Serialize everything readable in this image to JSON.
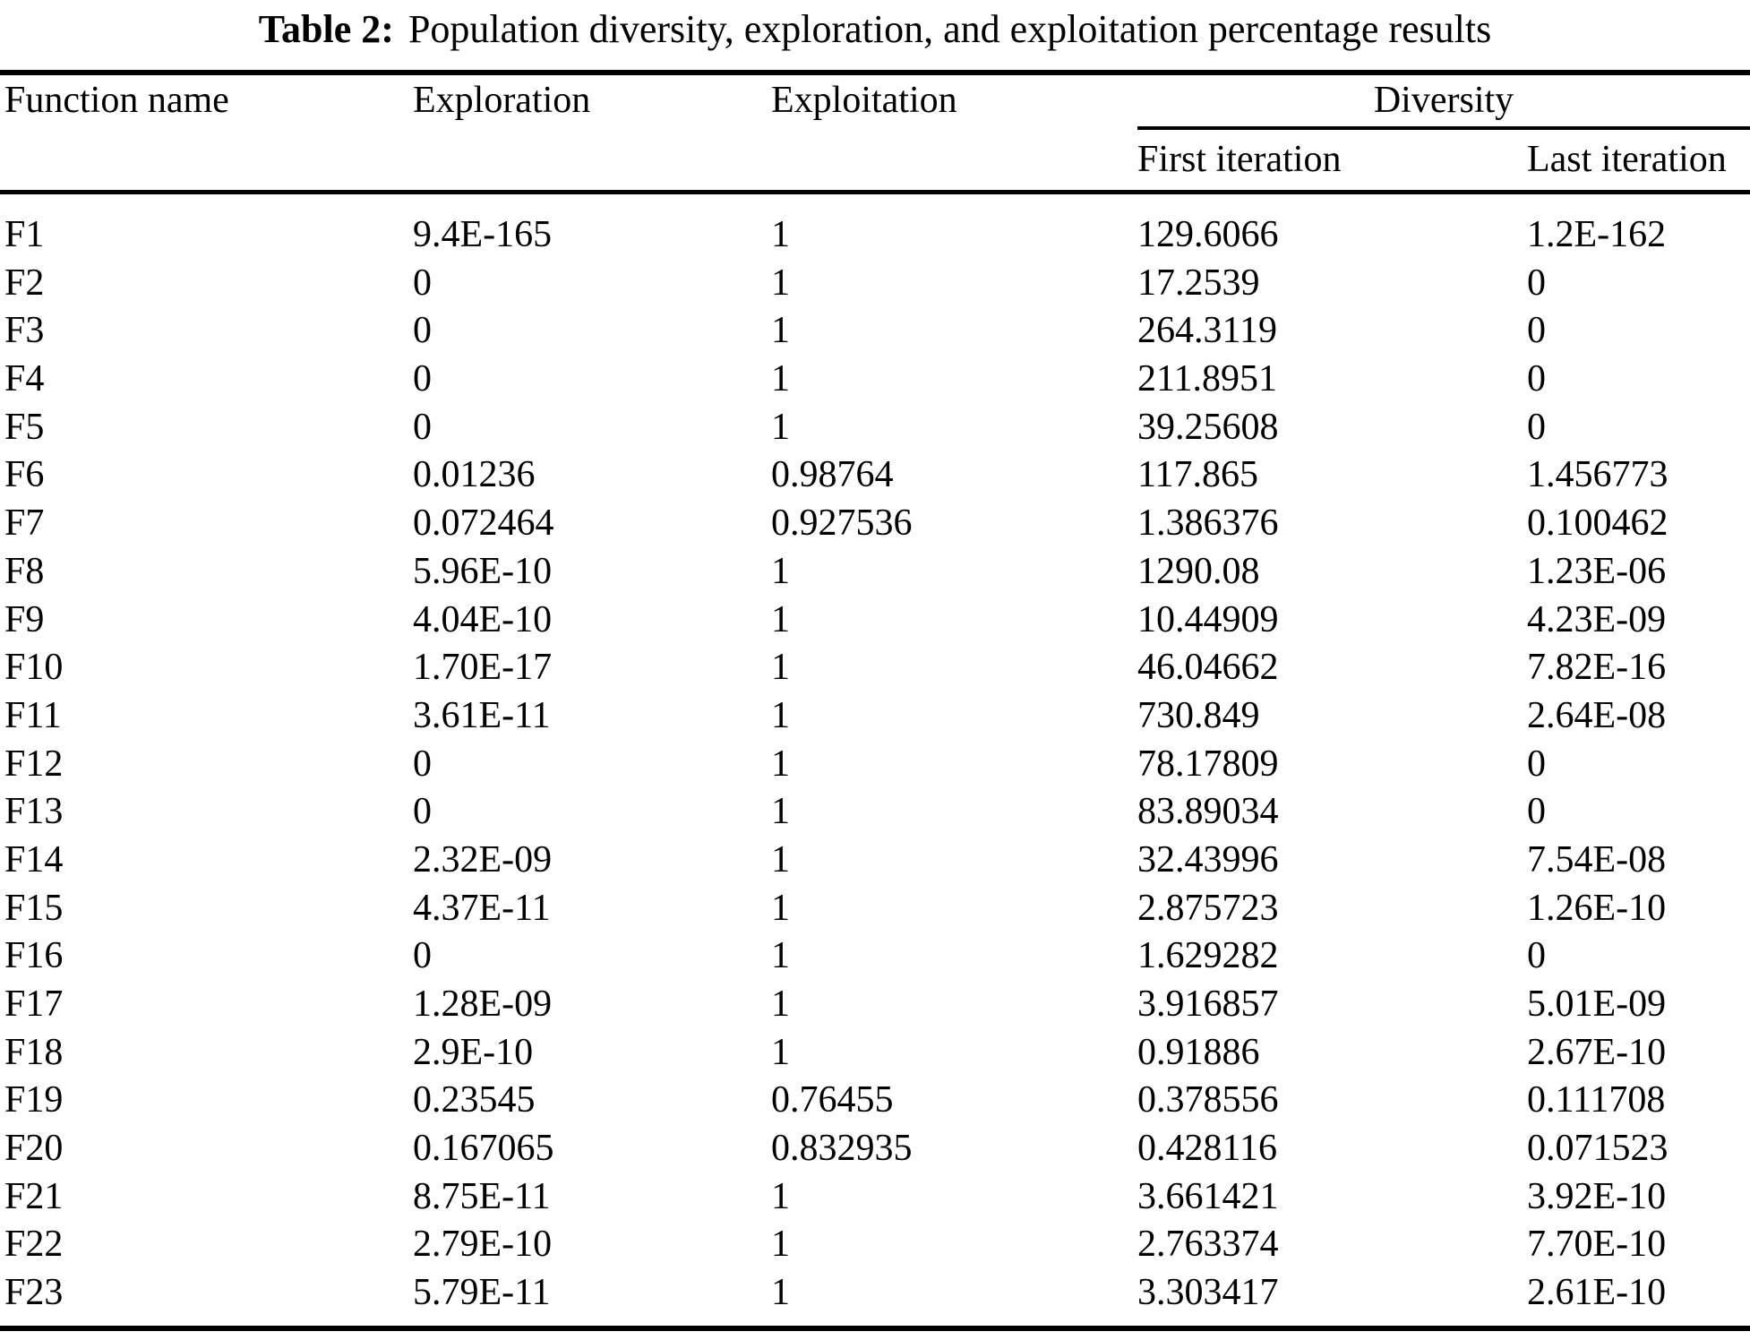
{
  "caption": {
    "label": "Table 2:",
    "text": "Population diversity, exploration, and exploitation percentage results"
  },
  "table": {
    "headers": {
      "function_name": "Function name",
      "exploration": "Exploration",
      "exploitation": "Exploitation",
      "diversity": "Diversity",
      "first_iteration": "First iteration",
      "last_iteration": "Last iteration"
    },
    "rows": [
      {
        "function": "F1",
        "exploration": "9.4E-165",
        "exploitation": "1",
        "diversity_first": "129.6066",
        "diversity_last": "1.2E-162"
      },
      {
        "function": "F2",
        "exploration": "0",
        "exploitation": "1",
        "diversity_first": "17.2539",
        "diversity_last": "0"
      },
      {
        "function": "F3",
        "exploration": "0",
        "exploitation": "1",
        "diversity_first": "264.3119",
        "diversity_last": "0"
      },
      {
        "function": "F4",
        "exploration": "0",
        "exploitation": "1",
        "diversity_first": "211.8951",
        "diversity_last": "0"
      },
      {
        "function": "F5",
        "exploration": "0",
        "exploitation": "1",
        "diversity_first": "39.25608",
        "diversity_last": "0"
      },
      {
        "function": "F6",
        "exploration": "0.01236",
        "exploitation": "0.98764",
        "diversity_first": "117.865",
        "diversity_last": "1.456773"
      },
      {
        "function": "F7",
        "exploration": "0.072464",
        "exploitation": "0.927536",
        "diversity_first": "1.386376",
        "diversity_last": "0.100462"
      },
      {
        "function": "F8",
        "exploration": "5.96E-10",
        "exploitation": "1",
        "diversity_first": "1290.08",
        "diversity_last": "1.23E-06"
      },
      {
        "function": "F9",
        "exploration": "4.04E-10",
        "exploitation": "1",
        "diversity_first": "10.44909",
        "diversity_last": "4.23E-09"
      },
      {
        "function": "F10",
        "exploration": "1.70E-17",
        "exploitation": "1",
        "diversity_first": "46.04662",
        "diversity_last": "7.82E-16"
      },
      {
        "function": "F11",
        "exploration": "3.61E-11",
        "exploitation": "1",
        "diversity_first": "730.849",
        "diversity_last": "2.64E-08"
      },
      {
        "function": "F12",
        "exploration": "0",
        "exploitation": "1",
        "diversity_first": "78.17809",
        "diversity_last": "0"
      },
      {
        "function": "F13",
        "exploration": "0",
        "exploitation": "1",
        "diversity_first": "83.89034",
        "diversity_last": "0"
      },
      {
        "function": "F14",
        "exploration": "2.32E-09",
        "exploitation": "1",
        "diversity_first": "32.43996",
        "diversity_last": "7.54E-08"
      },
      {
        "function": "F15",
        "exploration": "4.37E-11",
        "exploitation": "1",
        "diversity_first": "2.875723",
        "diversity_last": "1.26E-10"
      },
      {
        "function": "F16",
        "exploration": "0",
        "exploitation": "1",
        "diversity_first": "1.629282",
        "diversity_last": "0"
      },
      {
        "function": "F17",
        "exploration": "1.28E-09",
        "exploitation": "1",
        "diversity_first": "3.916857",
        "diversity_last": "5.01E-09"
      },
      {
        "function": "F18",
        "exploration": "2.9E-10",
        "exploitation": "1",
        "diversity_first": "0.91886",
        "diversity_last": "2.67E-10"
      },
      {
        "function": "F19",
        "exploration": "0.23545",
        "exploitation": "0.76455",
        "diversity_first": "0.378556",
        "diversity_last": "0.111708"
      },
      {
        "function": "F20",
        "exploration": "0.167065",
        "exploitation": "0.832935",
        "diversity_first": "0.428116",
        "diversity_last": "0.071523"
      },
      {
        "function": "F21",
        "exploration": "8.75E-11",
        "exploitation": "1",
        "diversity_first": "3.661421",
        "diversity_last": "3.92E-10"
      },
      {
        "function": "F22",
        "exploration": "2.79E-10",
        "exploitation": "1",
        "diversity_first": "2.763374",
        "diversity_last": "7.70E-10"
      },
      {
        "function": "F23",
        "exploration": "5.79E-11",
        "exploitation": "1",
        "diversity_first": "3.303417",
        "diversity_last": "2.61E-10"
      }
    ]
  }
}
